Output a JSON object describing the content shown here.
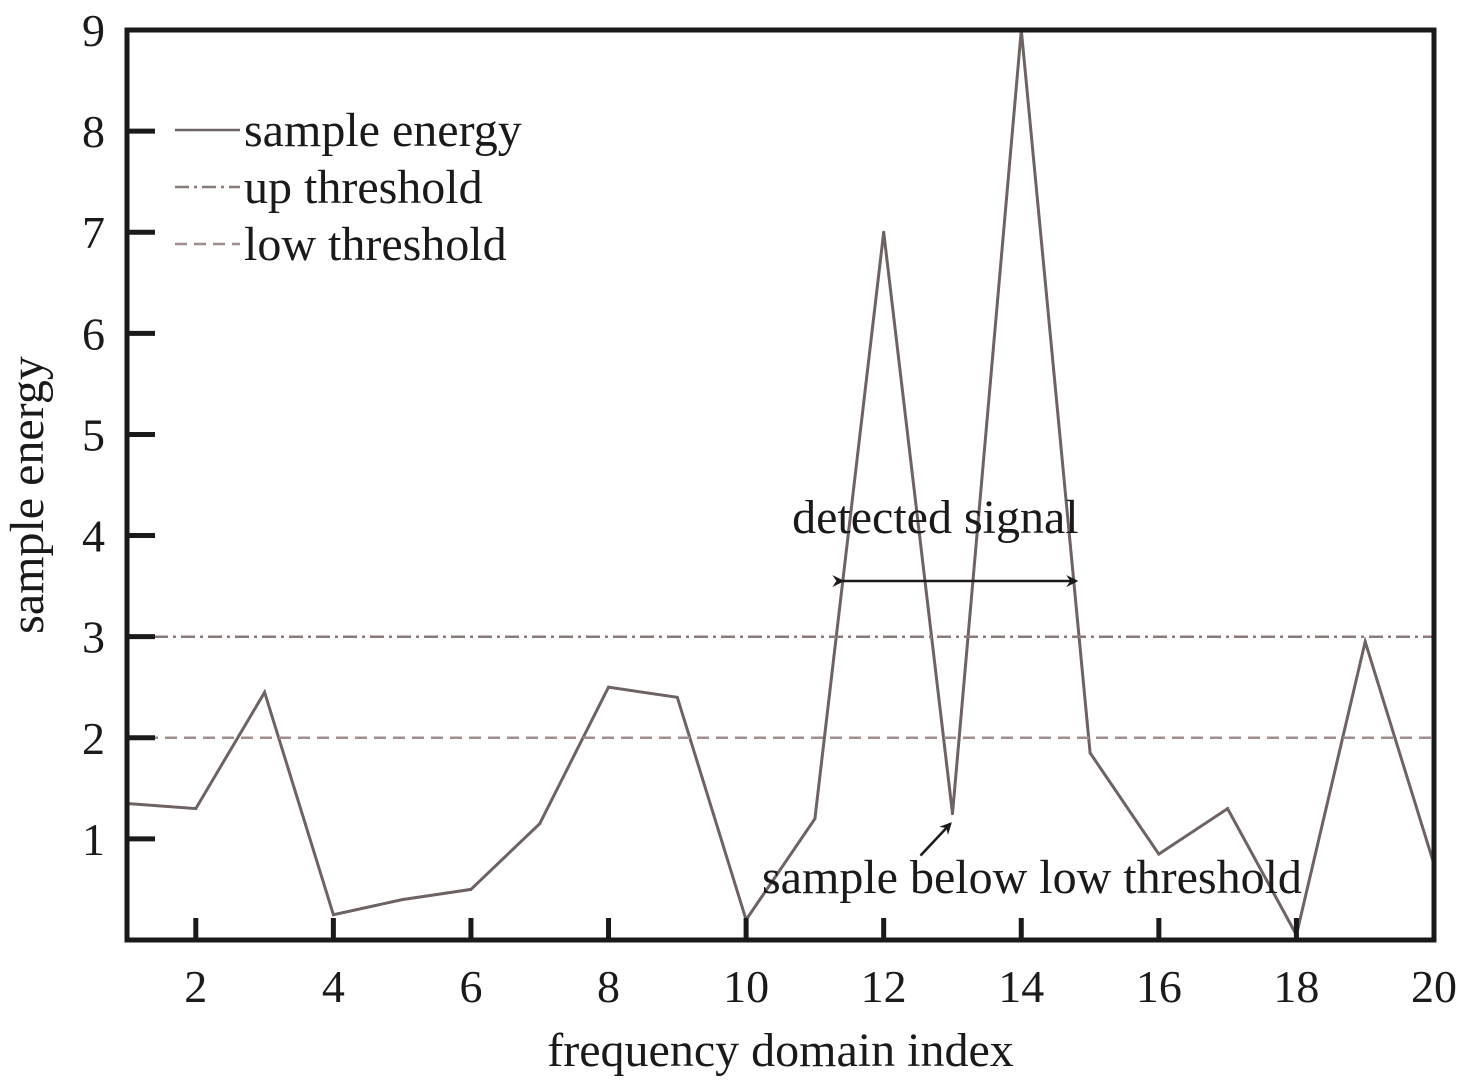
{
  "chart_data": {
    "type": "line",
    "title": "",
    "xlabel": "frequency domain index",
    "ylabel": "sample energy",
    "xlim": [
      1,
      20
    ],
    "ylim": [
      0,
      9
    ],
    "xticks": [
      2,
      4,
      6,
      8,
      10,
      12,
      14,
      16,
      18,
      20
    ],
    "yticks": [
      1,
      2,
      3,
      4,
      5,
      6,
      7,
      8,
      9
    ],
    "grid": false,
    "legend_position": "top-left",
    "legend": [
      {
        "label": "sample energy",
        "style": "solid"
      },
      {
        "label": "up threshold",
        "style": "dash-dot"
      },
      {
        "label": "low threshold",
        "style": "dashed"
      }
    ],
    "series": [
      {
        "name": "sample energy",
        "style": "solid",
        "color": "#6e6262",
        "x": [
          1,
          2,
          3,
          4,
          5,
          6,
          7,
          8,
          9,
          10,
          11,
          12,
          13,
          14,
          15,
          16,
          17,
          18,
          19,
          20
        ],
        "y": [
          1.35,
          1.3,
          2.45,
          0.25,
          0.4,
          0.5,
          1.15,
          2.5,
          2.4,
          0.2,
          1.2,
          7.0,
          1.25,
          9.0,
          1.85,
          0.85,
          1.3,
          0.05,
          2.95,
          0.75
        ]
      },
      {
        "name": "up threshold",
        "style": "dash-dot",
        "color": "#8a7a7a",
        "x": [
          1,
          20
        ],
        "y": [
          3,
          3
        ]
      },
      {
        "name": "low threshold",
        "style": "dashed",
        "color": "#a08e8e",
        "x": [
          1,
          20
        ],
        "y": [
          2,
          2
        ]
      }
    ],
    "annotations": [
      {
        "text": "detected signal",
        "type": "double-arrow",
        "x_from": 11.4,
        "x_to": 14.8,
        "y": 3.55
      },
      {
        "text": "sample below low threshold",
        "type": "arrow",
        "points_to": [
          13,
          1.25
        ]
      }
    ]
  }
}
